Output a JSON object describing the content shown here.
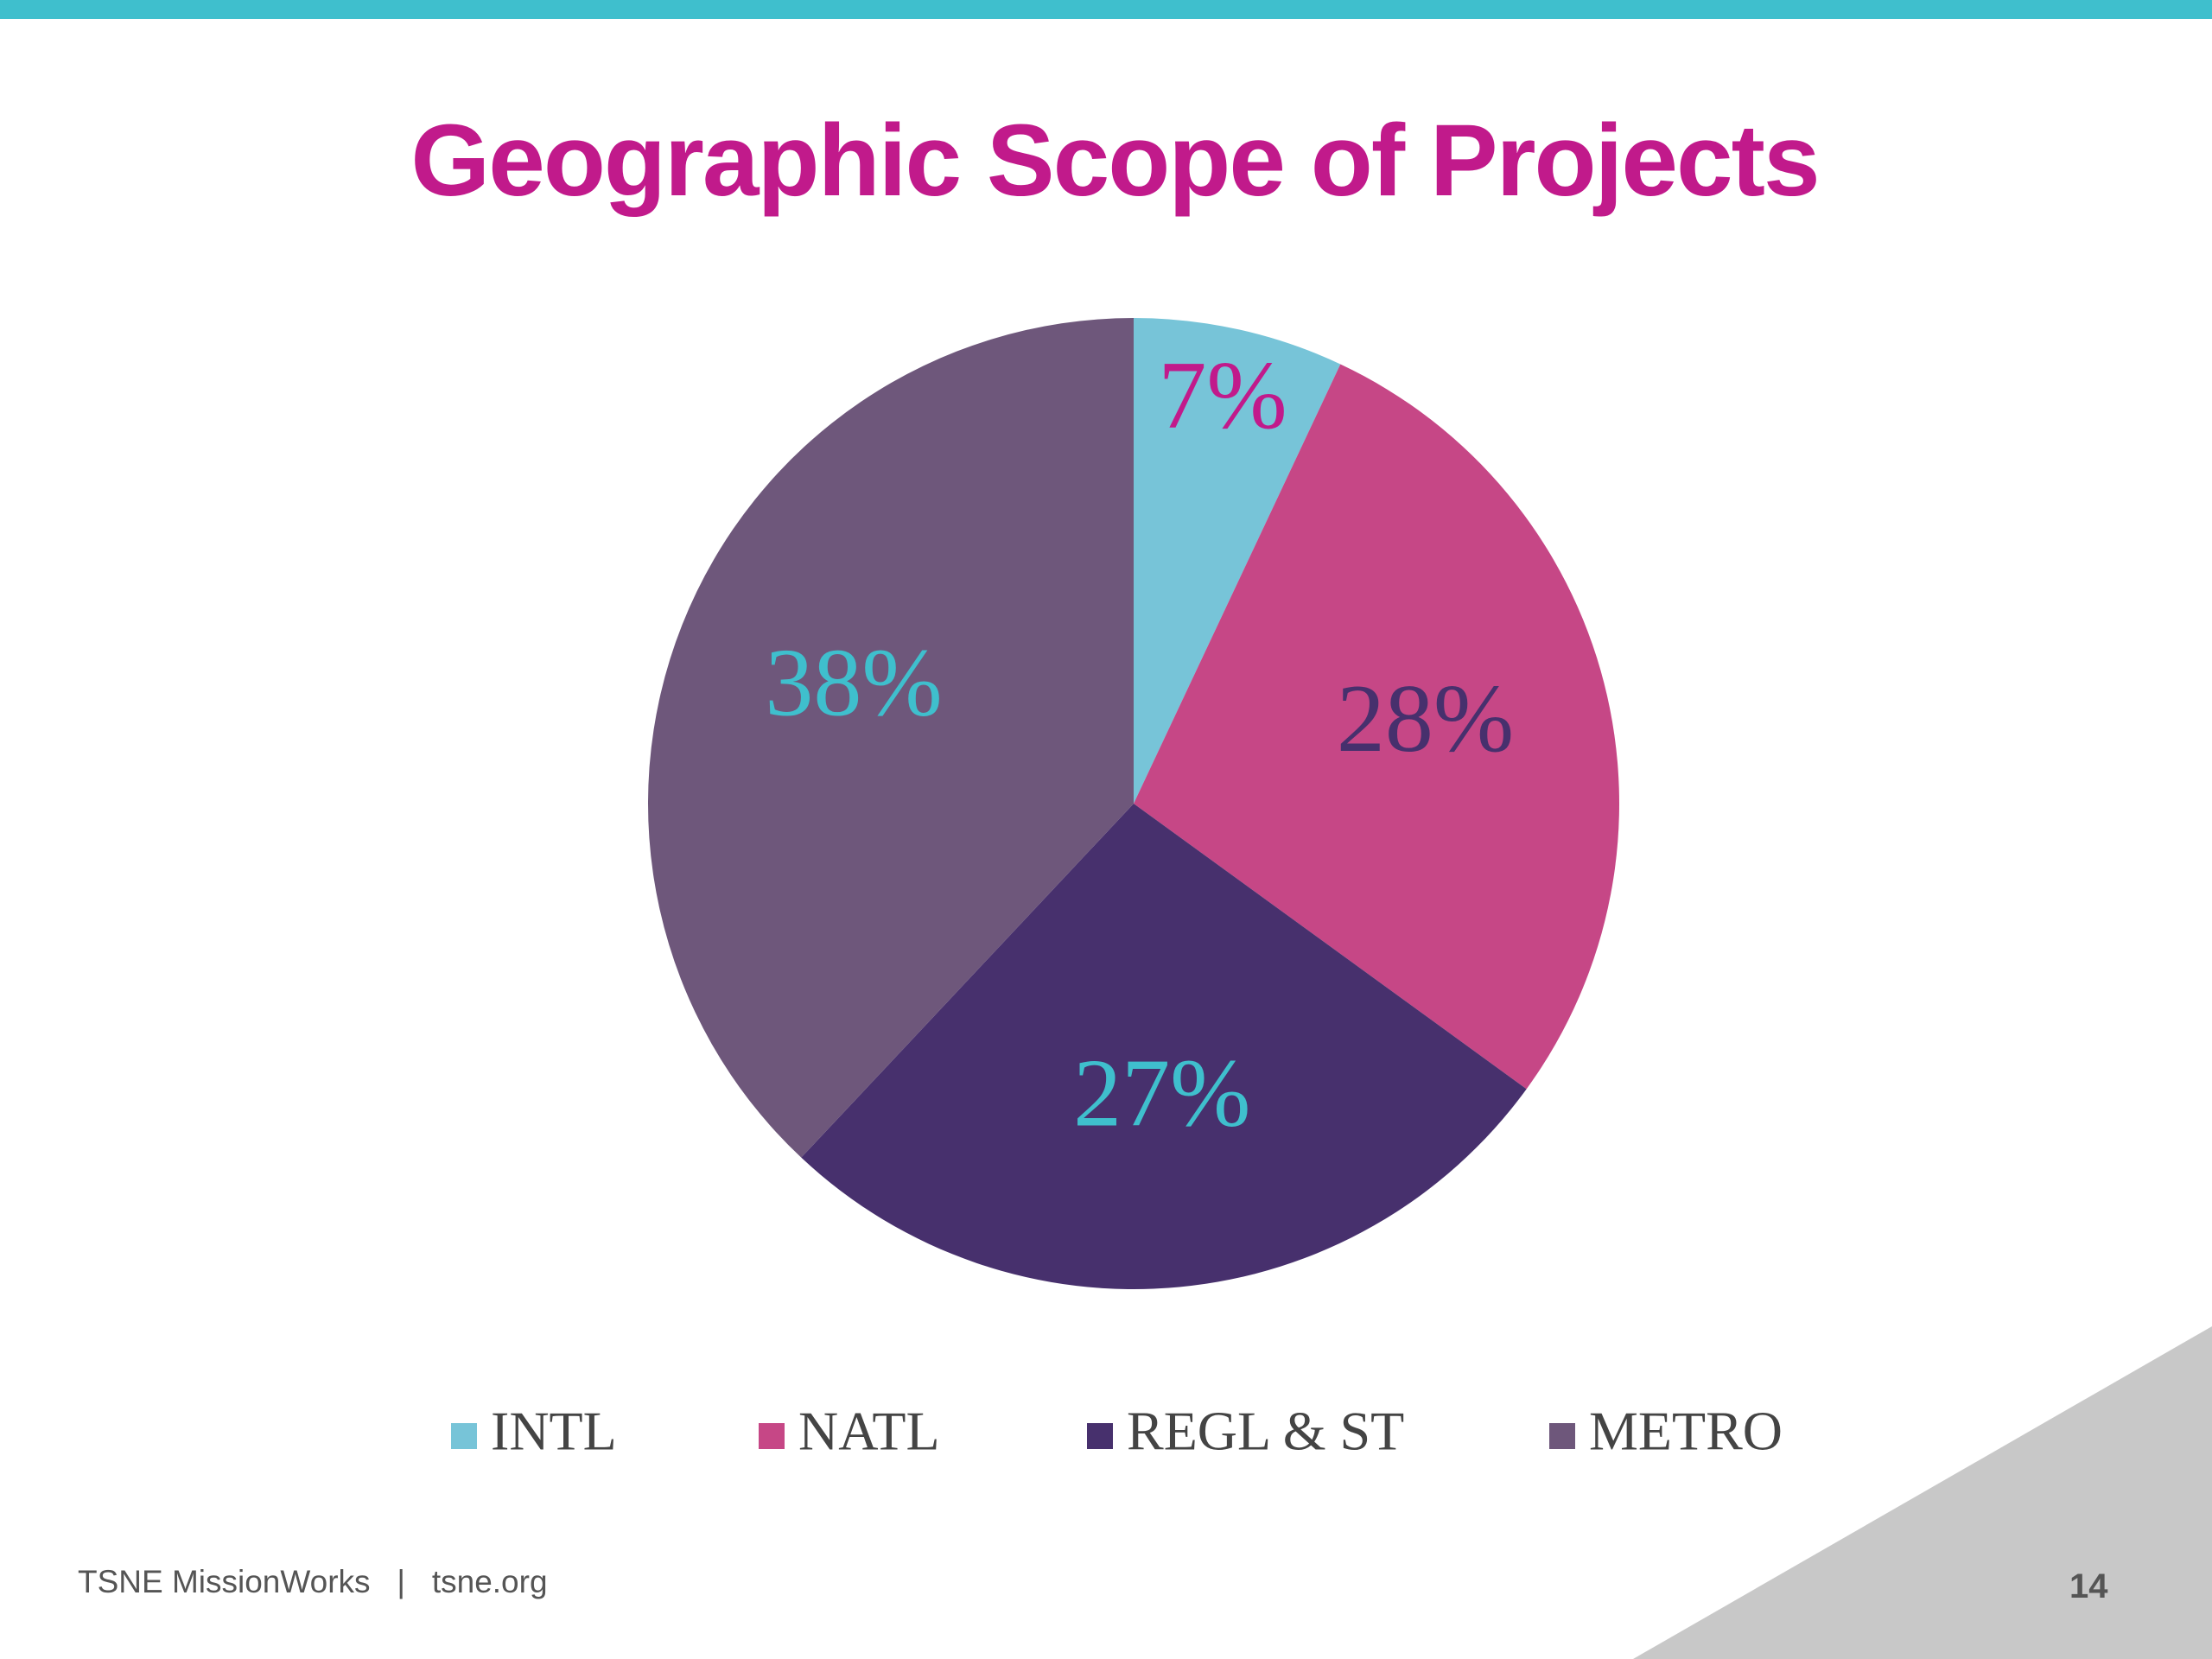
{
  "slide": {
    "title": "Geographic Scope of Projects",
    "footer_org": "TSNE MissionWorks",
    "footer_sep": "|",
    "footer_site": "tsne.org",
    "page_number": "14"
  },
  "colors": {
    "top_bar": "#3fbfcd",
    "title": "#c11a8b",
    "corner_triangle": "#c8c8c8"
  },
  "chart_data": {
    "type": "pie",
    "title": "Geographic Scope of Projects",
    "legend_position": "bottom",
    "slices": [
      {
        "label": "INTL",
        "value": 7,
        "display": "7%",
        "color": "#77c4d8",
        "label_color": "#c11a8b"
      },
      {
        "label": "NATL",
        "value": 28,
        "display": "28%",
        "color": "#c64786",
        "label_color": "#47306d"
      },
      {
        "label": "REGL & ST",
        "value": 27,
        "display": "27%",
        "color": "#47306d",
        "label_color": "#3fbfcd"
      },
      {
        "label": "METRO",
        "value": 38,
        "display": "38%",
        "color": "#6e577b",
        "label_color": "#3fbfcd"
      }
    ]
  }
}
